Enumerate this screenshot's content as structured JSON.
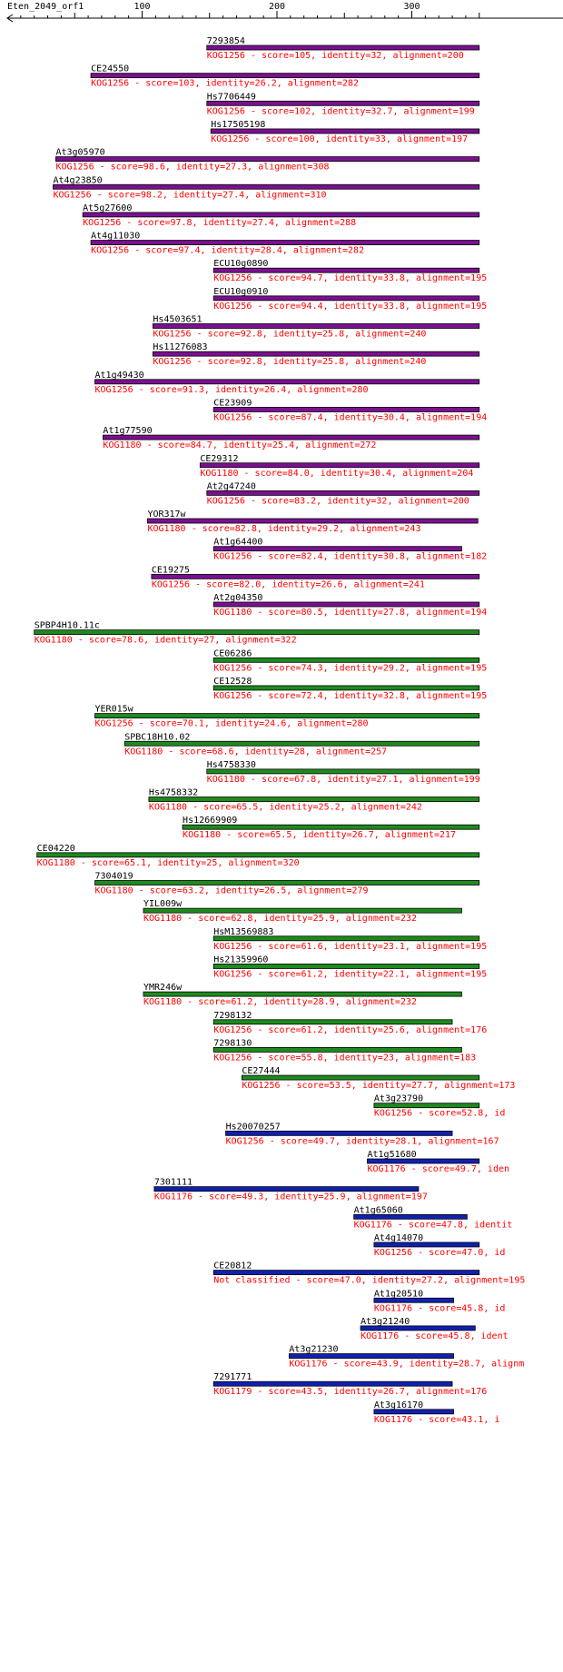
{
  "chart_data": {
    "type": "alignment-track",
    "title": "Eten_2049_orf1",
    "x_ticks": [
      100,
      200,
      300
    ],
    "x_range": [
      0,
      350
    ],
    "colors": {
      "purple": "#7b1090",
      "green": "#1e8a1e",
      "blue": "#1020b0",
      "bar_top": "#000000",
      "label": "#000000",
      "desc": "#ff0000"
    },
    "hits": [
      {
        "id": "7293854",
        "start": 148,
        "end": 350,
        "color": "purple",
        "desc": "KOG1256 - score=105, identity=32, alignment=200"
      },
      {
        "id": "CE24550",
        "start": 62,
        "end": 350,
        "color": "purple",
        "desc": "KOG1256 - score=103, identity=26.2, alignment=282"
      },
      {
        "id": "Hs7706449",
        "start": 148,
        "end": 350,
        "color": "purple",
        "desc": "KOG1256 - score=102, identity=32.7, alignment=199"
      },
      {
        "id": "Hs17505198",
        "start": 151,
        "end": 350,
        "color": "purple",
        "desc": "KOG1256 - score=100, identity=33, alignment=197"
      },
      {
        "id": "At3g05970",
        "start": 36,
        "end": 350,
        "color": "purple",
        "desc": "KOG1256 - score=98.6, identity=27.3, alignment=308"
      },
      {
        "id": "At4g23850",
        "start": 34,
        "end": 350,
        "color": "purple",
        "desc": "KOG1256 - score=98.2, identity=27.4, alignment=310"
      },
      {
        "id": "At5g27600",
        "start": 56,
        "end": 350,
        "color": "purple",
        "desc": "KOG1256 - score=97.8, identity=27.4, alignment=288"
      },
      {
        "id": "At4g11030",
        "start": 62,
        "end": 350,
        "color": "purple",
        "desc": "KOG1256 - score=97.4, identity=28.4, alignment=282"
      },
      {
        "id": "ECU10g0890",
        "start": 153,
        "end": 350,
        "color": "purple",
        "desc": "KOG1256 - score=94.7, identity=33.8, alignment=195"
      },
      {
        "id": "ECU10g0910",
        "start": 153,
        "end": 350,
        "color": "purple",
        "desc": "KOG1256 - score=94.4, identity=33.8, alignment=195"
      },
      {
        "id": "Hs4503651",
        "start": 108,
        "end": 350,
        "color": "purple",
        "desc": "KOG1256 - score=92.8, identity=25.8, alignment=240"
      },
      {
        "id": "Hs11276083",
        "start": 108,
        "end": 350,
        "color": "purple",
        "desc": "KOG1256 - score=92.8, identity=25.8, alignment=240"
      },
      {
        "id": "At1g49430",
        "start": 65,
        "end": 350,
        "color": "purple",
        "desc": "KOG1256 - score=91.3, identity=26.4, alignment=280"
      },
      {
        "id": "CE23909",
        "start": 153,
        "end": 350,
        "color": "purple",
        "desc": "KOG1256 - score=87.4, identity=30.4, alignment=194"
      },
      {
        "id": "At1g77590",
        "start": 71,
        "end": 350,
        "color": "purple",
        "desc": "KOG1180 - score=84.7, identity=25.4, alignment=272"
      },
      {
        "id": "CE29312",
        "start": 143,
        "end": 350,
        "color": "purple",
        "desc": "KOG1180 - score=84.0, identity=30.4, alignment=204"
      },
      {
        "id": "At2g47240",
        "start": 148,
        "end": 350,
        "color": "purple",
        "desc": "KOG1256 - score=83.2, identity=32, alignment=200"
      },
      {
        "id": "YOR317w",
        "start": 104,
        "end": 349,
        "color": "purple",
        "desc": "KOG1180 - score=82.8, identity=29.2, alignment=243"
      },
      {
        "id": "At1g64400",
        "start": 153,
        "end": 337,
        "color": "purple",
        "desc": "KOG1256 - score=82.4, identity=30.8, alignment=182"
      },
      {
        "id": "CE19275",
        "start": 107,
        "end": 350,
        "color": "purple",
        "desc": "KOG1256 - score=82.0, identity=26.6, alignment=241"
      },
      {
        "id": "At2g04350",
        "start": 153,
        "end": 350,
        "color": "purple",
        "desc": "KOG1180 - score=80.5, identity=27.8, alignment=194"
      },
      {
        "id": "SPBP4H10.11c",
        "start": 20,
        "end": 350,
        "color": "green",
        "desc": "KOG1180 - score=78.6, identity=27, alignment=322"
      },
      {
        "id": "CE06286",
        "start": 153,
        "end": 350,
        "color": "green",
        "desc": "KOG1256 - score=74.3, identity=29.2, alignment=195"
      },
      {
        "id": "CE12528",
        "start": 153,
        "end": 350,
        "color": "green",
        "desc": "KOG1256 - score=72.4, identity=32.8, alignment=195"
      },
      {
        "id": "YER015w",
        "start": 65,
        "end": 350,
        "color": "green",
        "desc": "KOG1256 - score=70.1, identity=24.6, alignment=280"
      },
      {
        "id": "SPBC18H10.02",
        "start": 87,
        "end": 350,
        "color": "green",
        "desc": "KOG1180 - score=68.6, identity=28, alignment=257"
      },
      {
        "id": "Hs4758330",
        "start": 148,
        "end": 350,
        "color": "green",
        "desc": "KOG1180 - score=67.8, identity=27.1, alignment=199"
      },
      {
        "id": "Hs4758332",
        "start": 105,
        "end": 350,
        "color": "green",
        "desc": "KOG1180 - score=65.5, identity=25.2, alignment=242"
      },
      {
        "id": "Hs12669909",
        "start": 130,
        "end": 350,
        "color": "green",
        "desc": "KOG1180 - score=65.5, identity=26.7, alignment=217"
      },
      {
        "id": "CE04220",
        "start": 22,
        "end": 350,
        "color": "green",
        "desc": "KOG1180 - score=65.1, identity=25, alignment=320"
      },
      {
        "id": "7304019",
        "start": 65,
        "end": 350,
        "color": "green",
        "desc": "KOG1180 - score=63.2, identity=26.5, alignment=279"
      },
      {
        "id": "YIL009w",
        "start": 101,
        "end": 337,
        "color": "green",
        "desc": "KOG1180 - score=62.8, identity=25.9, alignment=232"
      },
      {
        "id": "HsM13569883",
        "start": 153,
        "end": 350,
        "color": "green",
        "desc": "KOG1256 - score=61.6, identity=23.1, alignment=195"
      },
      {
        "id": "Hs21359960",
        "start": 153,
        "end": 350,
        "color": "green",
        "desc": "KOG1256 - score=61.2, identity=22.1, alignment=195"
      },
      {
        "id": "YMR246w",
        "start": 101,
        "end": 337,
        "color": "green",
        "desc": "KOG1180 - score=61.2, identity=28.9, alignment=232"
      },
      {
        "id": "7298132",
        "start": 153,
        "end": 330,
        "color": "green",
        "desc": "KOG1256 - score=61.2, identity=25.6, alignment=176"
      },
      {
        "id": "7298130",
        "start": 153,
        "end": 337,
        "color": "green",
        "desc": "KOG1256 - score=55.8, identity=23, alignment=183"
      },
      {
        "id": "CE27444",
        "start": 174,
        "end": 350,
        "color": "green",
        "desc": "KOG1256 - score=53.5, identity=27.7, alignment=173"
      },
      {
        "id": "At3g23790",
        "start": 272,
        "end": 350,
        "color": "green",
        "desc": "KOG1256 - score=52.8, id"
      },
      {
        "id": "Hs20070257",
        "start": 162,
        "end": 330,
        "color": "blue",
        "desc": "KOG1256 - score=49.7, identity=28.1, alignment=167"
      },
      {
        "id": "At1g51680",
        "start": 267,
        "end": 350,
        "color": "blue",
        "desc": "KOG1176 - score=49.7, iden"
      },
      {
        "id": "7301111",
        "start": 109,
        "end": 305,
        "color": "blue",
        "desc": "KOG1176 - score=49.3, identity=25.9, alignment=197"
      },
      {
        "id": "At1g65060",
        "start": 257,
        "end": 341,
        "color": "blue",
        "desc": "KOG1176 - score=47.8, identit"
      },
      {
        "id": "At4g14070",
        "start": 272,
        "end": 350,
        "color": "blue",
        "desc": "KOG1256 - score=47.0, id"
      },
      {
        "id": "CE20812",
        "start": 153,
        "end": 350,
        "color": "blue",
        "desc": "Not classified - score=47.0, identity=27.2, alignment=195"
      },
      {
        "id": "At1g20510",
        "start": 272,
        "end": 331,
        "color": "blue",
        "desc": "KOG1176 - score=45.8, id"
      },
      {
        "id": "At3g21240",
        "start": 262,
        "end": 347,
        "color": "blue",
        "desc": "KOG1176 - score=45.8, ident"
      },
      {
        "id": "At3g21230",
        "start": 209,
        "end": 331,
        "color": "blue",
        "desc": "KOG1176 - score=43.9, identity=28.7, alignm"
      },
      {
        "id": "7291771",
        "start": 153,
        "end": 330,
        "color": "blue",
        "desc": "KOG1179 - score=43.5, identity=26.7, alignment=176"
      },
      {
        "id": "At3g16170",
        "start": 272,
        "end": 331,
        "color": "blue",
        "desc": "KOG1176 - score=43.1, i"
      }
    ]
  }
}
